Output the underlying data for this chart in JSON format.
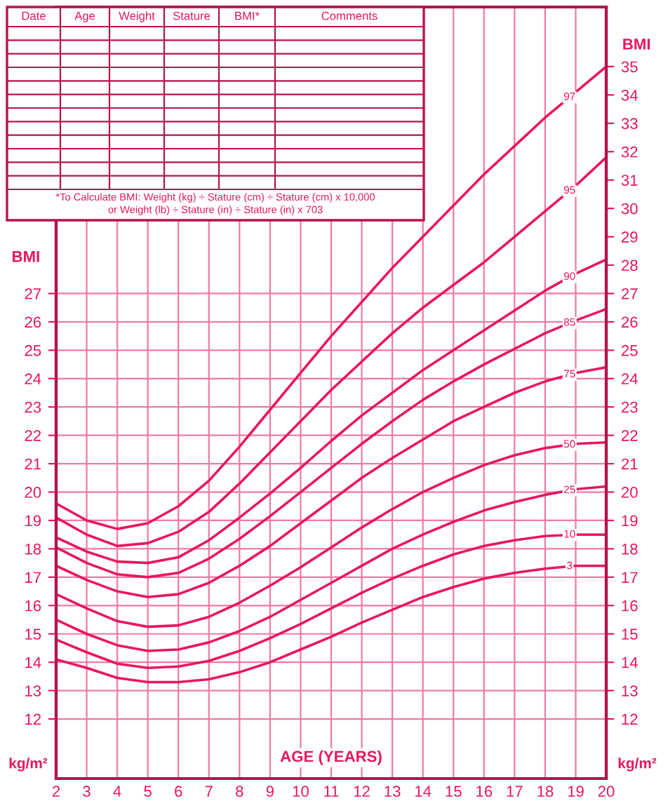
{
  "chart_data": {
    "type": "line",
    "xlabel": "AGE (YEARS)",
    "ylabel": "BMI",
    "y2label": "BMI",
    "x": [
      2,
      3,
      4,
      5,
      6,
      7,
      8,
      9,
      10,
      11,
      12,
      13,
      14,
      15,
      16,
      17,
      18,
      19,
      20
    ],
    "series": [
      {
        "name": "97",
        "color": "#e8175d",
        "values": [
          19.6,
          19.0,
          18.7,
          18.9,
          19.5,
          20.4,
          21.6,
          22.9,
          24.2,
          25.5,
          26.7,
          27.9,
          29.0,
          30.1,
          31.2,
          32.2,
          33.2,
          34.1,
          35.0
        ]
      },
      {
        "name": "95",
        "color": "#e8175d",
        "values": [
          19.1,
          18.5,
          18.1,
          18.2,
          18.6,
          19.3,
          20.3,
          21.4,
          22.5,
          23.6,
          24.6,
          25.6,
          26.5,
          27.3,
          28.1,
          29.0,
          29.9,
          30.8,
          31.8
        ]
      },
      {
        "name": "90",
        "color": "#e8175d",
        "values": [
          18.4,
          17.9,
          17.55,
          17.5,
          17.7,
          18.3,
          19.1,
          19.95,
          20.85,
          21.8,
          22.7,
          23.5,
          24.3,
          25.0,
          25.7,
          26.4,
          27.1,
          27.7,
          28.2
        ]
      },
      {
        "name": "85",
        "color": "#e8175d",
        "values": [
          18.05,
          17.5,
          17.1,
          17.0,
          17.15,
          17.65,
          18.35,
          19.15,
          20.0,
          20.85,
          21.7,
          22.5,
          23.25,
          23.9,
          24.5,
          25.05,
          25.6,
          26.05,
          26.45
        ]
      },
      {
        "name": "75",
        "color": "#e8175d",
        "values": [
          17.4,
          16.9,
          16.5,
          16.3,
          16.4,
          16.8,
          17.4,
          18.1,
          18.9,
          19.7,
          20.5,
          21.2,
          21.85,
          22.5,
          23.0,
          23.5,
          23.9,
          24.2,
          24.4
        ]
      },
      {
        "name": "50",
        "color": "#e8175d",
        "values": [
          16.4,
          15.9,
          15.45,
          15.25,
          15.3,
          15.6,
          16.1,
          16.7,
          17.35,
          18.05,
          18.75,
          19.4,
          20.0,
          20.5,
          20.95,
          21.3,
          21.55,
          21.7,
          21.75
        ]
      },
      {
        "name": "25",
        "color": "#e8175d",
        "values": [
          15.5,
          15.0,
          14.6,
          14.4,
          14.45,
          14.7,
          15.1,
          15.6,
          16.2,
          16.8,
          17.4,
          18.0,
          18.5,
          18.95,
          19.35,
          19.65,
          19.9,
          20.1,
          20.2
        ]
      },
      {
        "name": "10",
        "color": "#e8175d",
        "values": [
          14.8,
          14.35,
          13.95,
          13.8,
          13.85,
          14.05,
          14.4,
          14.85,
          15.35,
          15.9,
          16.45,
          16.95,
          17.4,
          17.8,
          18.1,
          18.3,
          18.45,
          18.5,
          18.5
        ]
      },
      {
        "name": "3",
        "color": "#e8175d",
        "values": [
          14.1,
          13.8,
          13.45,
          13.3,
          13.3,
          13.4,
          13.65,
          14.0,
          14.45,
          14.9,
          15.4,
          15.85,
          16.3,
          16.65,
          16.95,
          17.15,
          17.3,
          17.4,
          17.4
        ]
      }
    ],
    "xlim": [
      2,
      20
    ],
    "xticks": [
      2,
      3,
      4,
      5,
      6,
      7,
      8,
      9,
      10,
      11,
      12,
      13,
      14,
      15,
      16,
      17,
      18,
      19,
      20
    ],
    "ylim": [
      9.9,
      37.1
    ],
    "yticks": [
      12,
      13,
      14,
      15,
      16,
      17,
      18,
      19,
      20,
      21,
      22,
      23,
      24,
      25,
      26,
      27
    ],
    "y2lim": [
      9.9,
      37.1
    ],
    "y2ticks": [
      12,
      13,
      14,
      15,
      16,
      17,
      18,
      19,
      20,
      21,
      22,
      23,
      24,
      25,
      26,
      27,
      28,
      29,
      30,
      31,
      32,
      33,
      34,
      35
    ],
    "grid": true,
    "legend": false,
    "marker": "none",
    "line_style": "solid",
    "annotations": [
      "Date",
      "Age",
      "Weight",
      "Stature",
      "BMI*",
      "Comments",
      "*To Calculate BMI: Weight (kg) ÷ Stature (cm) ÷ Stature (cm) x 10,000",
      "or Weight (lb) ÷ Stature (in) ÷ Stature (in) x 703",
      "kg/m²",
      "kg/m²"
    ]
  }
}
